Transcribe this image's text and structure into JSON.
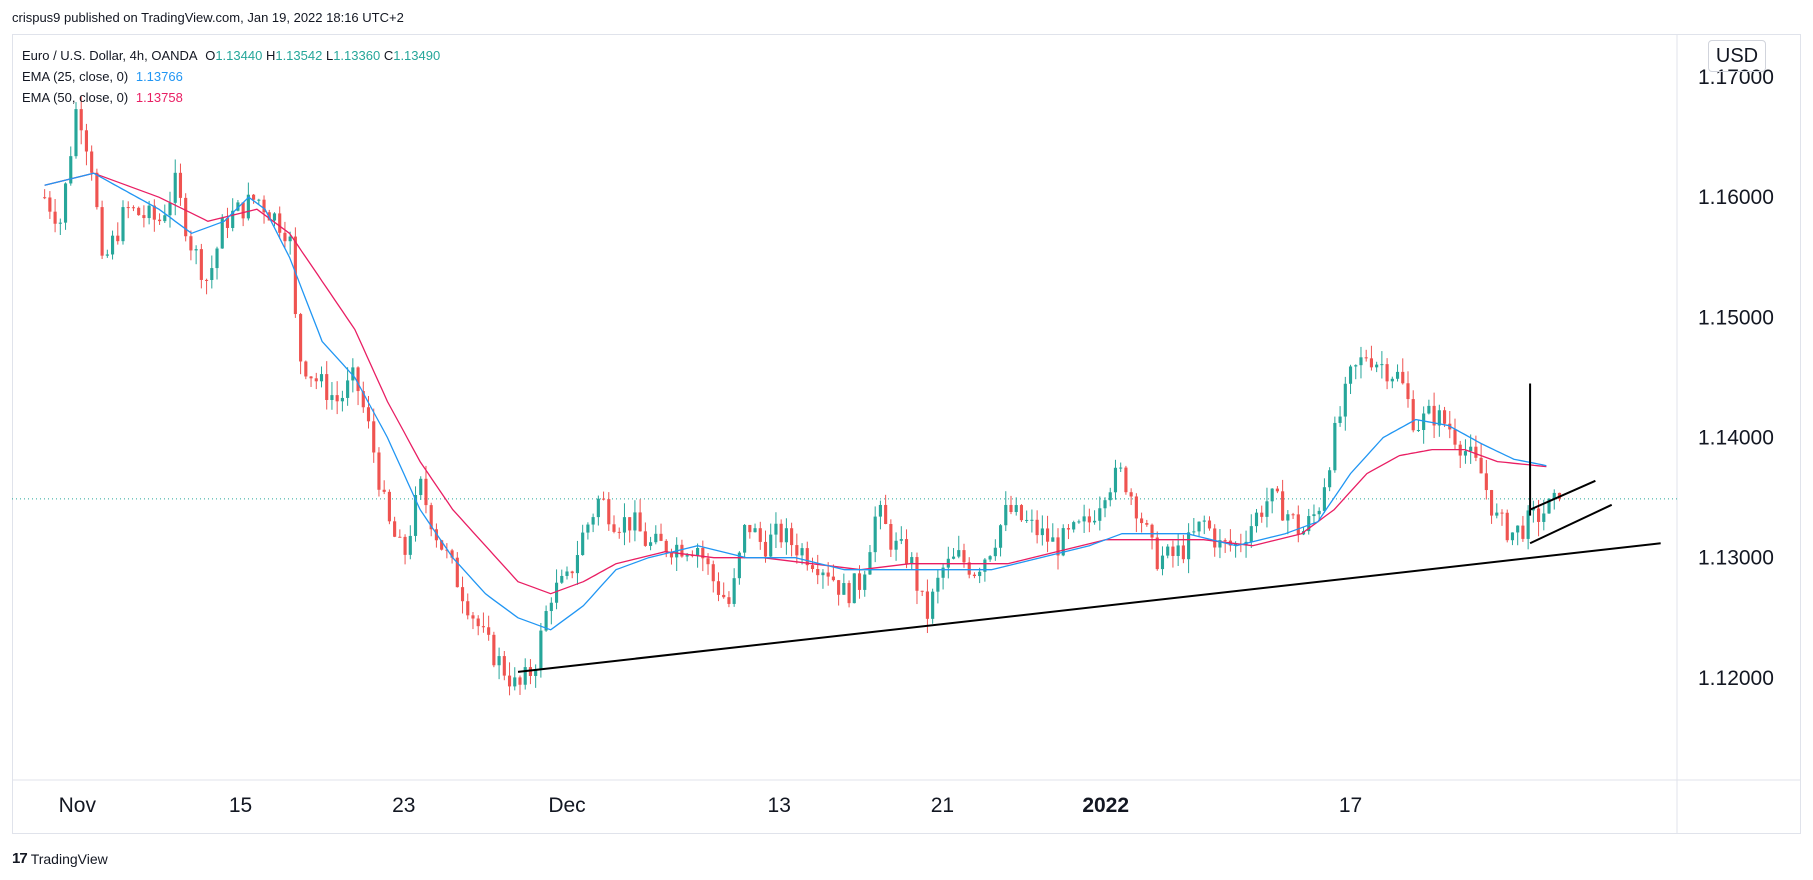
{
  "header": {
    "published_text": "crispus9 published on TradingView.com, Jan 19, 2022 18:16 UTC+2"
  },
  "legend": {
    "symbol": "Euro / U.S. Dollar, 4h, OANDA",
    "open_label": "O",
    "open": "1.13440",
    "high_label": "H",
    "high": "1.13542",
    "low_label": "L",
    "low": "1.13360",
    "close_label": "C",
    "close": "1.13490",
    "ema25_label": "EMA (25, close, 0)",
    "ema25_value": "1.13766",
    "ema50_label": "EMA (50, close, 0)",
    "ema50_value": "1.13758"
  },
  "currency_label": "USD",
  "footer": {
    "logo_text": "17",
    "brand": "TradingView"
  },
  "colors": {
    "up": "#26a69a",
    "down": "#ef5350",
    "ema25": "#2196f3",
    "ema50": "#e91e63",
    "trendline": "#000000",
    "price_line": "#26a69a"
  },
  "chart_data": {
    "type": "candlestick",
    "title": "Euro / U.S. Dollar, 4h, OANDA",
    "ylim": [
      1.1115,
      1.1735
    ],
    "y_ticks": [
      "1.17000",
      "1.16000",
      "1.15000",
      "1.14000",
      "1.13000",
      "1.12000"
    ],
    "y_tick_values": [
      1.17,
      1.16,
      1.15,
      1.14,
      1.13,
      1.12
    ],
    "x_range": [
      -2,
      100
    ],
    "x_ticks": [
      {
        "label": "Nov",
        "x": 2
      },
      {
        "label": "15",
        "x": 12
      },
      {
        "label": "23",
        "x": 22
      },
      {
        "label": "Dec",
        "x": 32
      },
      {
        "label": "13",
        "x": 45
      },
      {
        "label": "21",
        "x": 55
      },
      {
        "label": "2022",
        "x": 65,
        "bold": true
      },
      {
        "label": "17",
        "x": 80
      }
    ],
    "last_price": 1.1349,
    "anchors": [
      [
        0,
        1.16
      ],
      [
        1,
        1.158
      ],
      [
        2,
        1.168
      ],
      [
        3,
        1.162
      ],
      [
        3.5,
        1.154
      ],
      [
        5,
        1.159
      ],
      [
        7,
        1.158
      ],
      [
        8,
        1.161
      ],
      [
        9,
        1.156
      ],
      [
        10,
        1.153
      ],
      [
        11,
        1.158
      ],
      [
        13,
        1.16
      ],
      [
        15,
        1.157
      ],
      [
        15.5,
        1.147
      ],
      [
        16.5,
        1.145
      ],
      [
        18,
        1.143
      ],
      [
        19,
        1.145
      ],
      [
        20,
        1.14
      ],
      [
        21,
        1.133
      ],
      [
        22,
        1.13
      ],
      [
        23,
        1.136
      ],
      [
        24,
        1.132
      ],
      [
        25,
        1.129
      ],
      [
        26,
        1.126
      ],
      [
        27,
        1.123
      ],
      [
        28,
        1.121
      ],
      [
        29,
        1.119
      ],
      [
        30,
        1.121
      ],
      [
        31,
        1.127
      ],
      [
        32,
        1.128
      ],
      [
        33,
        1.132
      ],
      [
        34,
        1.135
      ],
      [
        35,
        1.133
      ],
      [
        36,
        1.133
      ],
      [
        37,
        1.131
      ],
      [
        38,
        1.131
      ],
      [
        40,
        1.131
      ],
      [
        41,
        1.128
      ],
      [
        42,
        1.126
      ],
      [
        43,
        1.133
      ],
      [
        44,
        1.131
      ],
      [
        45,
        1.132
      ],
      [
        46,
        1.131
      ],
      [
        48,
        1.129
      ],
      [
        49,
        1.127
      ],
      [
        50,
        1.128
      ],
      [
        51,
        1.134
      ],
      [
        52,
        1.131
      ],
      [
        53,
        1.13
      ],
      [
        54,
        1.125
      ],
      [
        55,
        1.129
      ],
      [
        56,
        1.13
      ],
      [
        57,
        1.129
      ],
      [
        58,
        1.131
      ],
      [
        59,
        1.134
      ],
      [
        60,
        1.133
      ],
      [
        61,
        1.132
      ],
      [
        62,
        1.131
      ],
      [
        63,
        1.132
      ],
      [
        64,
        1.133
      ],
      [
        65,
        1.136
      ],
      [
        66,
        1.137
      ],
      [
        67,
        1.134
      ],
      [
        68,
        1.13
      ],
      [
        69,
        1.13
      ],
      [
        70,
        1.131
      ],
      [
        71,
        1.133
      ],
      [
        72,
        1.131
      ],
      [
        73,
        1.131
      ],
      [
        74,
        1.133
      ],
      [
        75,
        1.135
      ],
      [
        76,
        1.134
      ],
      [
        77,
        1.132
      ],
      [
        78,
        1.134
      ],
      [
        79,
        1.14
      ],
      [
        80,
        1.145
      ],
      [
        81,
        1.147
      ],
      [
        82,
        1.146
      ],
      [
        83,
        1.145
      ],
      [
        84,
        1.141
      ],
      [
        85,
        1.142
      ],
      [
        86,
        1.141
      ],
      [
        87,
        1.139
      ],
      [
        88,
        1.137
      ],
      [
        89,
        1.133
      ],
      [
        90,
        1.132
      ],
      [
        91,
        1.133
      ],
      [
        92,
        1.134
      ],
      [
        93,
        1.1349
      ]
    ],
    "ema25_anchors": [
      [
        0,
        1.161
      ],
      [
        3,
        1.162
      ],
      [
        7,
        1.159
      ],
      [
        9,
        1.157
      ],
      [
        11,
        1.158
      ],
      [
        12.5,
        1.16
      ],
      [
        13.5,
        1.159
      ],
      [
        15,
        1.155
      ],
      [
        17,
        1.148
      ],
      [
        19,
        1.145
      ],
      [
        21,
        1.14
      ],
      [
        23,
        1.134
      ],
      [
        25,
        1.13
      ],
      [
        27,
        1.127
      ],
      [
        29,
        1.125
      ],
      [
        31,
        1.124
      ],
      [
        33,
        1.126
      ],
      [
        35,
        1.129
      ],
      [
        37,
        1.13
      ],
      [
        40,
        1.131
      ],
      [
        43,
        1.13
      ],
      [
        46,
        1.13
      ],
      [
        49,
        1.129
      ],
      [
        52,
        1.129
      ],
      [
        55,
        1.129
      ],
      [
        58,
        1.129
      ],
      [
        61,
        1.13
      ],
      [
        64,
        1.131
      ],
      [
        66,
        1.132
      ],
      [
        68,
        1.132
      ],
      [
        70,
        1.132
      ],
      [
        73,
        1.131
      ],
      [
        76,
        1.132
      ],
      [
        78,
        1.133
      ],
      [
        80,
        1.137
      ],
      [
        82,
        1.14
      ],
      [
        84,
        1.1415
      ],
      [
        86,
        1.141
      ],
      [
        88,
        1.1395
      ],
      [
        90,
        1.1382
      ],
      [
        92,
        1.13766
      ]
    ],
    "ema50_anchors": [
      [
        0,
        1.161
      ],
      [
        3,
        1.162
      ],
      [
        7,
        1.16
      ],
      [
        10,
        1.158
      ],
      [
        13,
        1.159
      ],
      [
        15,
        1.157
      ],
      [
        17,
        1.153
      ],
      [
        19,
        1.149
      ],
      [
        21,
        1.143
      ],
      [
        23,
        1.138
      ],
      [
        25,
        1.134
      ],
      [
        27,
        1.131
      ],
      [
        29,
        1.128
      ],
      [
        31,
        1.127
      ],
      [
        33,
        1.128
      ],
      [
        35,
        1.1295
      ],
      [
        38,
        1.1305
      ],
      [
        41,
        1.13
      ],
      [
        44,
        1.13
      ],
      [
        47,
        1.1295
      ],
      [
        50,
        1.129
      ],
      [
        53,
        1.1295
      ],
      [
        56,
        1.1295
      ],
      [
        59,
        1.1295
      ],
      [
        62,
        1.1305
      ],
      [
        65,
        1.1315
      ],
      [
        68,
        1.1315
      ],
      [
        71,
        1.1315
      ],
      [
        74,
        1.131
      ],
      [
        77,
        1.132
      ],
      [
        79,
        1.134
      ],
      [
        81,
        1.137
      ],
      [
        83,
        1.1385
      ],
      [
        85,
        1.139
      ],
      [
        87,
        1.139
      ],
      [
        89,
        1.138
      ],
      [
        92,
        1.13758
      ]
    ],
    "annotations": {
      "support_trendline": [
        [
          29,
          1.1205
        ],
        [
          99,
          1.1312
        ]
      ],
      "flag_pole": [
        [
          91,
          1.1445
        ],
        [
          91,
          1.1335
        ]
      ],
      "flag_upper": [
        [
          91,
          1.134
        ],
        [
          95,
          1.1364
        ]
      ],
      "flag_lower": [
        [
          91,
          1.1312
        ],
        [
          96,
          1.1344
        ]
      ]
    }
  }
}
